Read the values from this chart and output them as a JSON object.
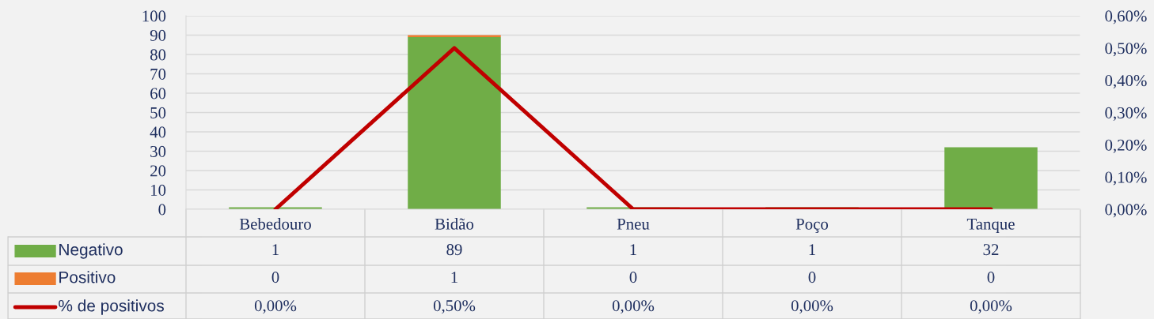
{
  "chart_data": {
    "type": "bar",
    "stacked": true,
    "categories": [
      "Bebedouro",
      "Bidão",
      "Pneu",
      "Poço",
      "Tanque"
    ],
    "series": [
      {
        "name": "Negativo",
        "color": "#70ad47",
        "values": [
          1,
          89,
          1,
          1,
          32
        ],
        "value_labels": [
          "1",
          "89",
          "1",
          "1",
          "32"
        ]
      },
      {
        "name": "Positivo",
        "color": "#ed7d31",
        "values": [
          0,
          1,
          0,
          0,
          0
        ],
        "value_labels": [
          "0",
          "1",
          "0",
          "0",
          "0"
        ]
      },
      {
        "name": "% de positivos",
        "type": "line",
        "axis": "y2",
        "color": "#c00000",
        "values": [
          0,
          0.5,
          0,
          0,
          0
        ],
        "value_labels": [
          "0,00%",
          "0,50%",
          "0,00%",
          "0,00%",
          "0,00%"
        ]
      }
    ],
    "ylim": [
      0,
      100
    ],
    "yticks": [
      0,
      10,
      20,
      30,
      40,
      50,
      60,
      70,
      80,
      90,
      100
    ],
    "y2lim": [
      0,
      0.6
    ],
    "y2ticks": [
      {
        "value": 0,
        "label": "0,00%"
      },
      {
        "value": 0.1,
        "label": "0,10%"
      },
      {
        "value": 0.2,
        "label": "0,20%"
      },
      {
        "value": 0.3,
        "label": "0,30%"
      },
      {
        "value": 0.4,
        "label": "0,40%"
      },
      {
        "value": 0.5,
        "label": "0,50%"
      },
      {
        "value": 0.6,
        "label": "0,60%"
      }
    ],
    "grid": "y",
    "legend": "bottom left",
    "marker": "none",
    "line_style": "solid"
  }
}
